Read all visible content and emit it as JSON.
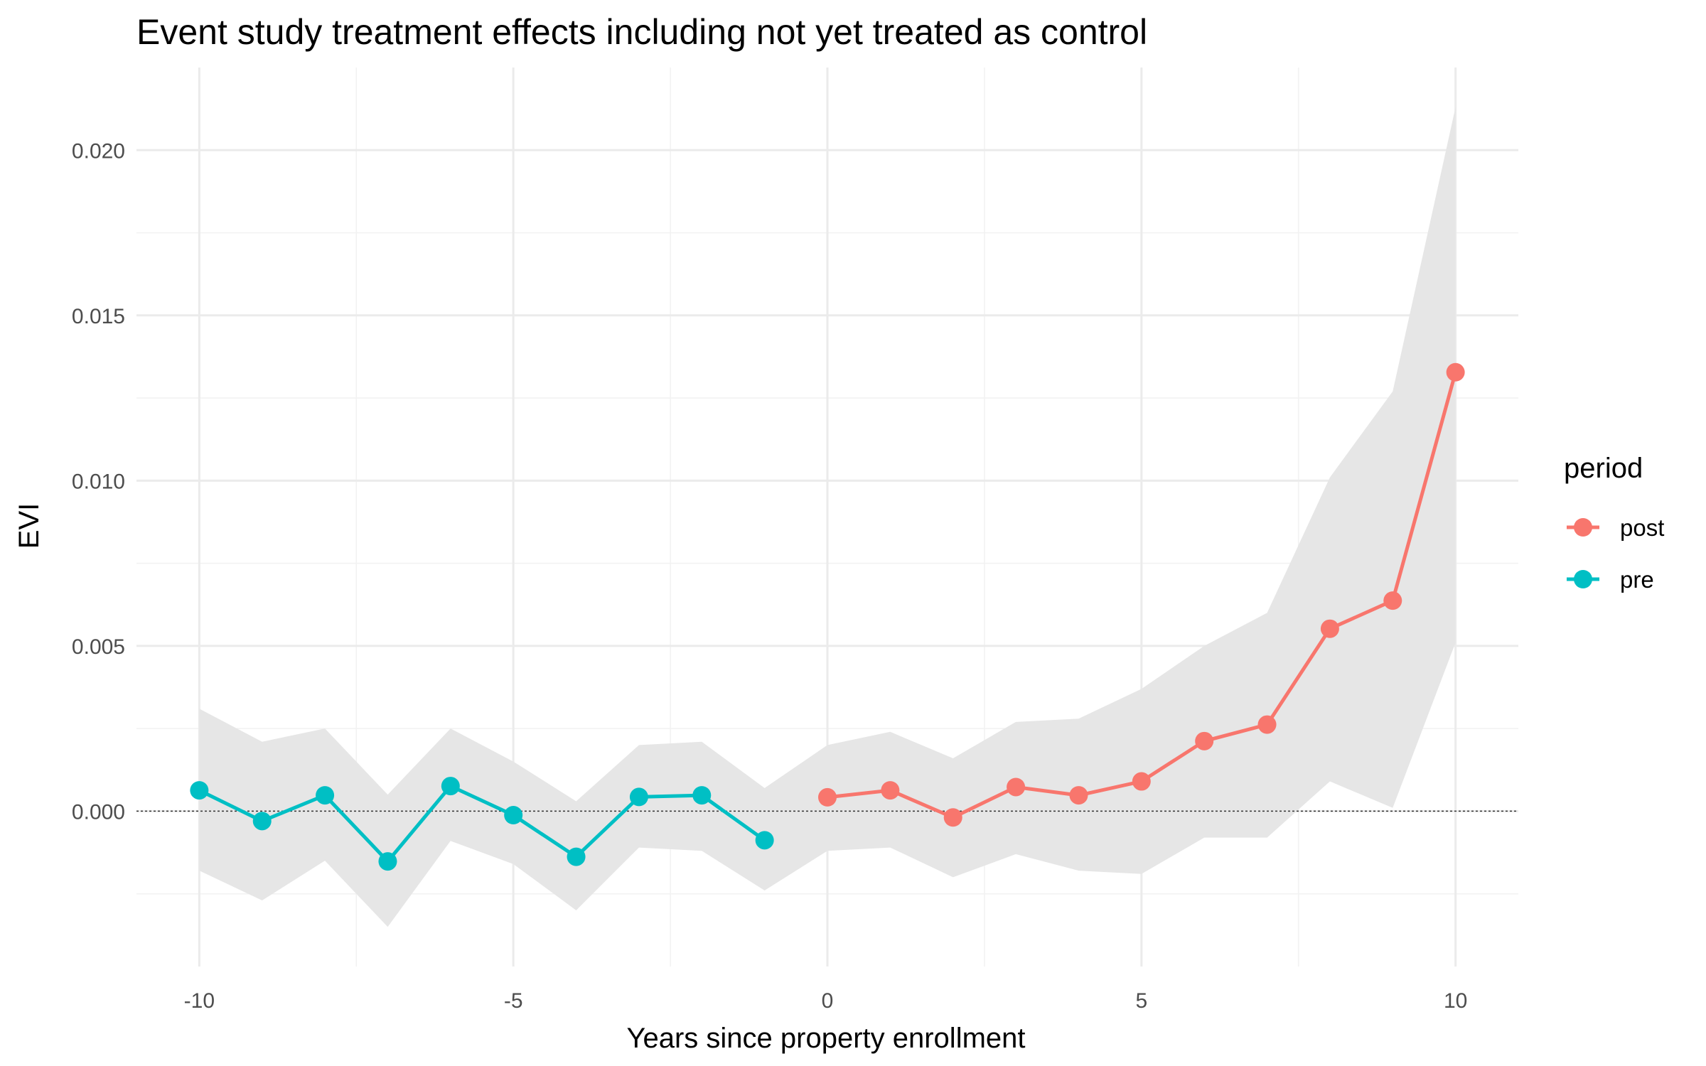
{
  "chart_data": {
    "type": "line",
    "title": "Event study treatment effects including not yet treated as control",
    "xlabel": "Years since property enrollment",
    "ylabel": "EVI",
    "xlim": [
      -11,
      11
    ],
    "ylim": [
      -0.0047,
      0.0225
    ],
    "x_ticks": [
      -10,
      -5,
      0,
      5,
      10
    ],
    "x_tick_labels": [
      "-10",
      "-5",
      "0",
      "5",
      "10"
    ],
    "y_ticks": [
      0.0,
      0.005,
      0.01,
      0.015,
      0.02
    ],
    "y_tick_labels": [
      "0.000",
      "0.005",
      "0.010",
      "0.015",
      "0.020"
    ],
    "grid": true,
    "reference_line": {
      "y": 0,
      "style": "dotted"
    },
    "legend": {
      "title": "period",
      "position": "right",
      "entries": [
        "post",
        "pre"
      ]
    },
    "colors": {
      "post": "#F8766D",
      "pre": "#00BFC4",
      "ribbon": "#e6e6e6"
    },
    "series": [
      {
        "name": "pre",
        "x": [
          -10,
          -9,
          -8,
          -7,
          -6,
          -5,
          -4,
          -3,
          -2,
          -1
        ],
        "y": [
          0.00063,
          -0.0003,
          0.00048,
          -0.00152,
          0.00076,
          -0.00012,
          -0.00138,
          0.00043,
          0.00048,
          -0.00088
        ],
        "lower": [
          -0.0018,
          -0.0027,
          -0.0015,
          -0.0035,
          -0.0009,
          -0.0016,
          -0.003,
          -0.0011,
          -0.0012,
          -0.0024
        ],
        "upper": [
          0.0031,
          0.0021,
          0.0025,
          0.0005,
          0.0025,
          0.0015,
          0.0003,
          0.002,
          0.0021,
          0.0007
        ]
      },
      {
        "name": "post",
        "x": [
          0,
          1,
          2,
          3,
          4,
          5,
          6,
          7,
          8,
          9,
          10
        ],
        "y": [
          0.00042,
          0.00063,
          -0.00019,
          0.00073,
          0.00048,
          0.0009,
          0.00212,
          0.00262,
          0.00552,
          0.00637,
          0.01328
        ],
        "lower": [
          -0.0012,
          -0.0011,
          -0.002,
          -0.0013,
          -0.0018,
          -0.0019,
          -0.0008,
          -0.0008,
          0.0009,
          0.0001,
          0.0051
        ],
        "upper": [
          0.002,
          0.0024,
          0.0016,
          0.0027,
          0.0028,
          0.0037,
          0.005,
          0.006,
          0.0101,
          0.0127,
          0.0213
        ]
      }
    ]
  }
}
